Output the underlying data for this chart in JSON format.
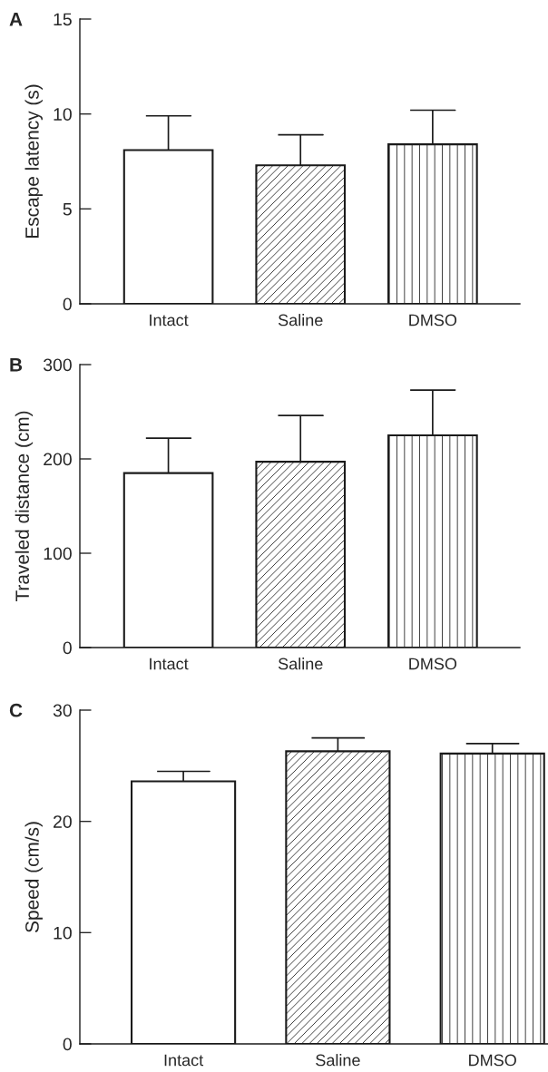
{
  "chart_data": [
    {
      "type": "bar",
      "title": "A",
      "ylabel": "Escape latency (s)",
      "categories": [
        "Intact",
        "Saline",
        "DMSO"
      ],
      "values": [
        8.1,
        7.3,
        8.4
      ],
      "errors": [
        [
          8.1,
          9.9
        ],
        [
          7.3,
          8.9
        ],
        [
          8.4,
          10.2
        ]
      ],
      "colors": [
        "#ffffff",
        "#ffffff",
        "#ffffff"
      ],
      "ylim": [
        0,
        15
      ],
      "yticks": [
        0,
        5,
        10,
        15
      ],
      "grid": false,
      "legend": false
    },
    {
      "type": "bar",
      "title": "B",
      "ylabel": "Traveled distance (cm)",
      "categories": [
        "Intact",
        "Saline",
        "DMSO"
      ],
      "values": [
        185,
        197,
        225
      ],
      "errors": [
        [
          185,
          222
        ],
        [
          197,
          246
        ],
        [
          225,
          273
        ]
      ],
      "colors": [
        "#ffffff",
        "#ffffff",
        "#ffffff"
      ],
      "ylim": [
        0,
        300
      ],
      "yticks": [
        0,
        100,
        200,
        300
      ],
      "grid": false,
      "legend": false
    },
    {
      "type": "bar",
      "title": "C",
      "ylabel": "Speed (cm/s)",
      "categories": [
        "Intact",
        "Saline",
        "DMSO"
      ],
      "values": [
        23.6,
        26.3,
        26.1
      ],
      "errors": [
        [
          23.6,
          24.5
        ],
        [
          26.3,
          27.5
        ],
        [
          26.1,
          27.0
        ]
      ],
      "colors": [
        "#ffffff",
        "#ffffff",
        "#ffffff"
      ],
      "ylim": [
        0,
        30
      ],
      "yticks": [
        0,
        10,
        20,
        30
      ],
      "grid": false,
      "legend": false
    }
  ]
}
